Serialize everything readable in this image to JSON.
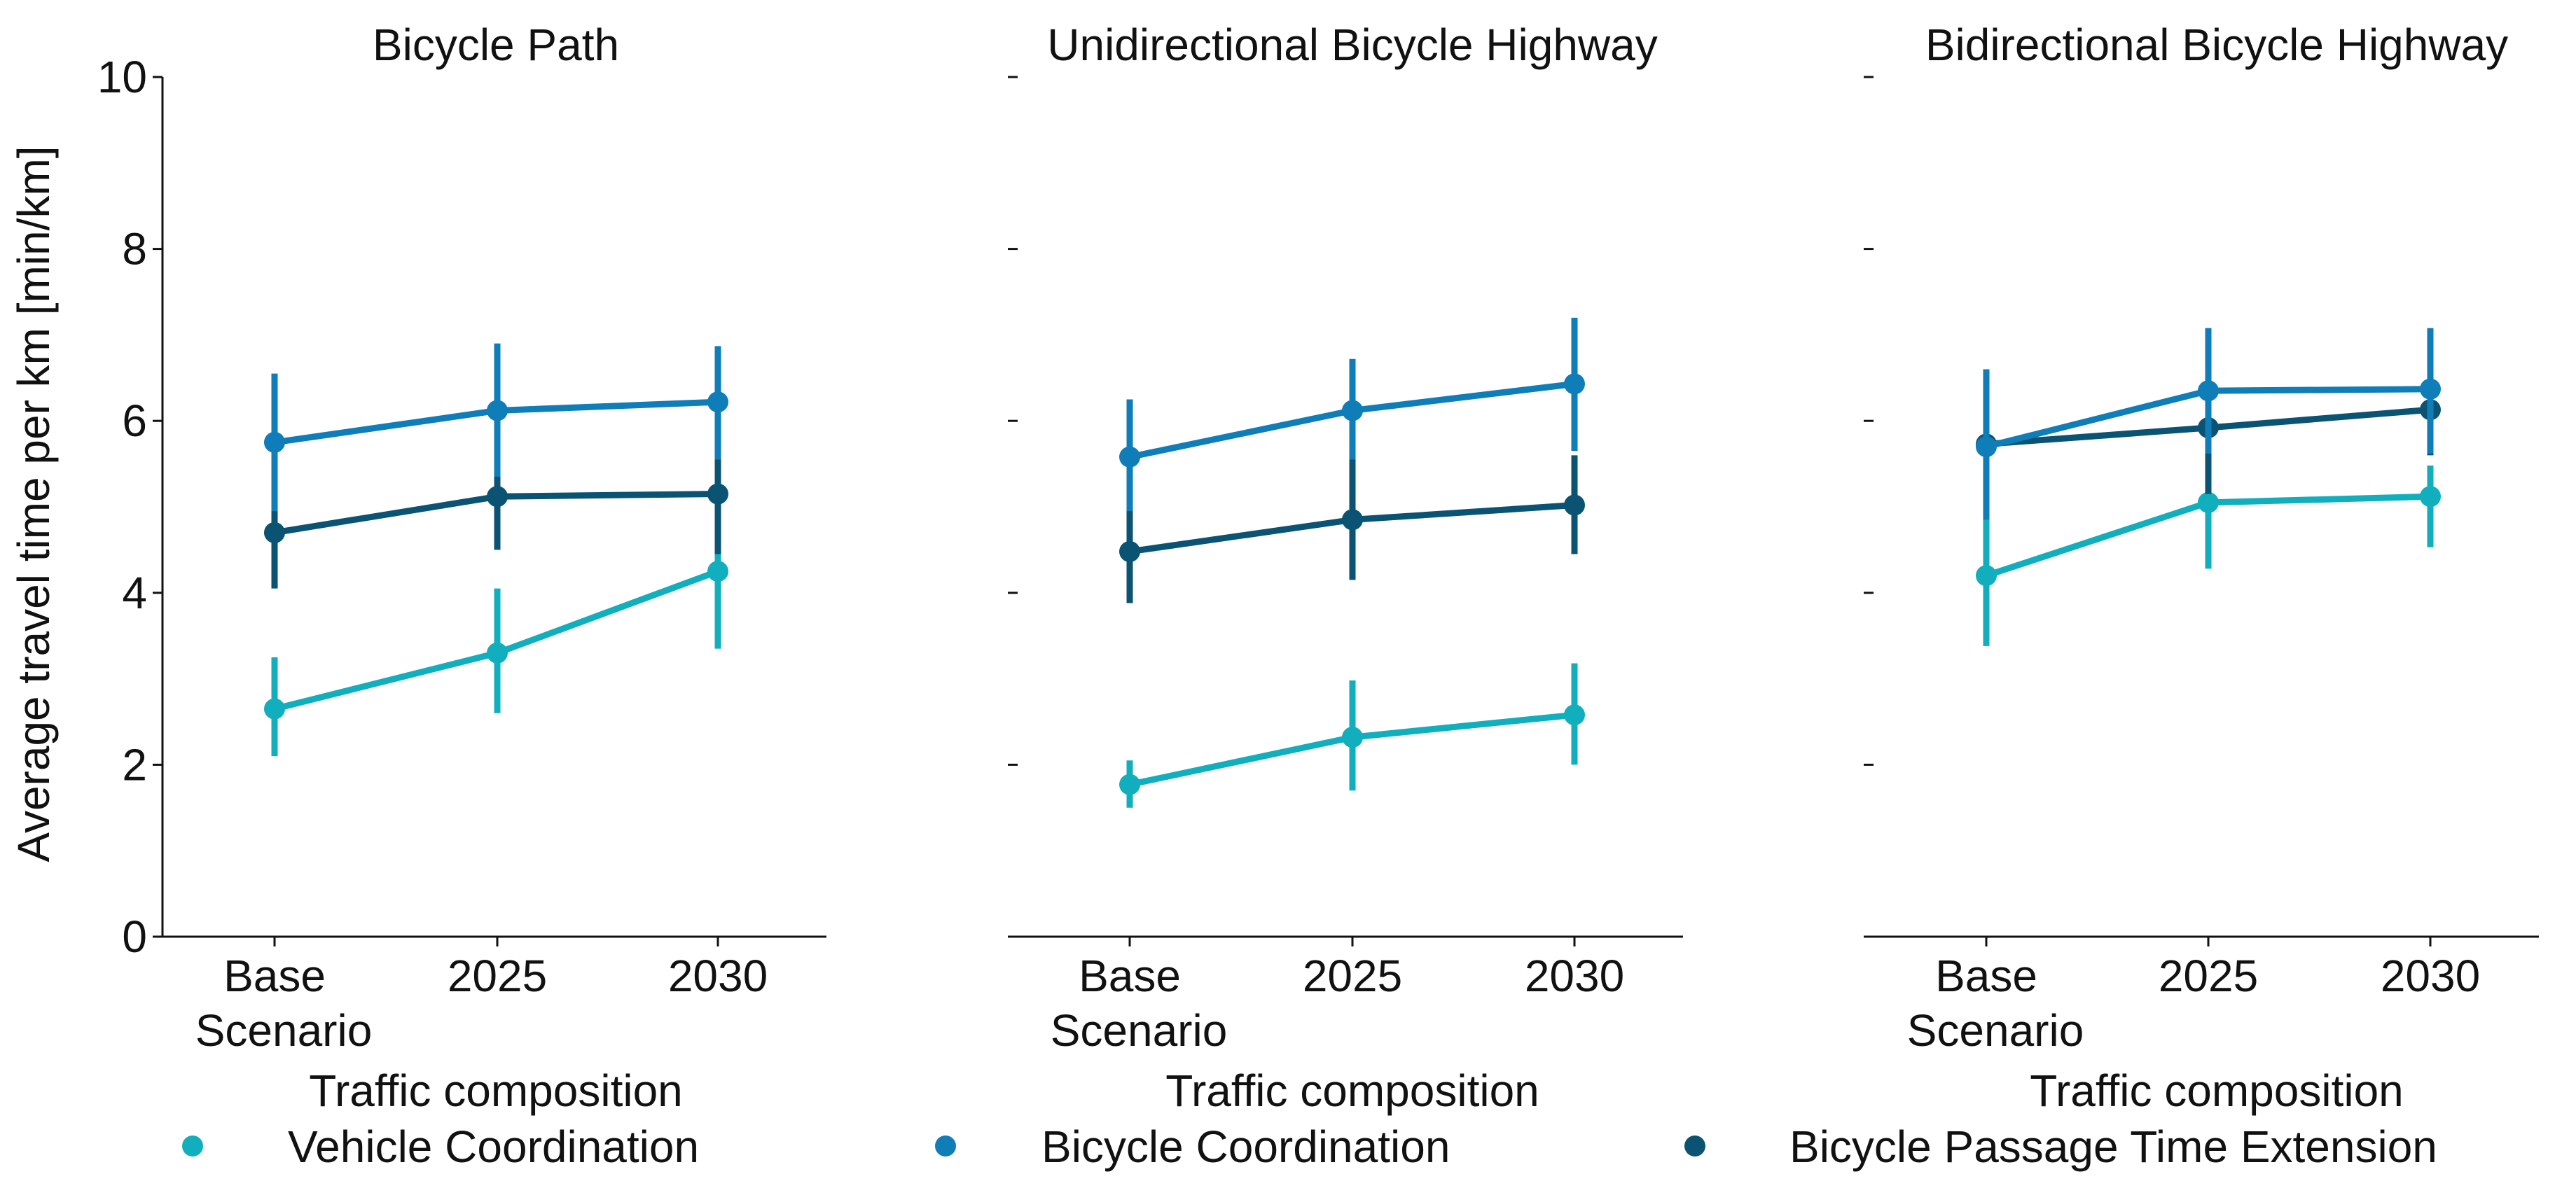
{
  "chart_data": {
    "type": "line",
    "ylabel": "Average travel time per km [min/km]",
    "ylim": [
      0,
      10
    ],
    "yticks": [
      0,
      2,
      4,
      6,
      8,
      10
    ],
    "xlabel": "Traffic composition",
    "categories": [
      {
        "line1": "Base",
        "line2": "Scenario"
      },
      {
        "line1": "2025",
        "line2": ""
      },
      {
        "line1": "2030",
        "line2": ""
      }
    ],
    "series_styles": [
      {
        "name": "Vehicle Coordination",
        "color": "#11afbd"
      },
      {
        "name": "Bicycle Coordination",
        "color": "#0e7db8"
      },
      {
        "name": "Bicycle Passage Time Extension",
        "color": "#0b5373"
      }
    ],
    "panels": [
      {
        "title": "Bicycle Path",
        "series": [
          {
            "name": "Vehicle Coordination",
            "values": [
              2.65,
              3.3,
              4.25
            ],
            "ci_low": [
              2.1,
              2.6,
              3.35
            ],
            "ci_high": [
              3.25,
              4.05,
              4.9
            ]
          },
          {
            "name": "Bicycle Coordination",
            "values": [
              5.75,
              6.12,
              6.22
            ],
            "ci_low": [
              4.95,
              5.35,
              5.55
            ],
            "ci_high": [
              6.55,
              6.9,
              6.87
            ]
          },
          {
            "name": "Bicycle Passage Time Extension",
            "values": [
              4.7,
              5.12,
              5.15
            ],
            "ci_low": [
              4.05,
              4.5,
              4.45
            ],
            "ci_high": [
              5.35,
              5.75,
              5.8
            ]
          }
        ]
      },
      {
        "title": "Unidirectional Bicycle Highway",
        "series": [
          {
            "name": "Vehicle Coordination",
            "values": [
              1.77,
              2.32,
              2.58
            ],
            "ci_low": [
              1.5,
              1.7,
              2.0
            ],
            "ci_high": [
              2.05,
              2.98,
              3.18
            ]
          },
          {
            "name": "Bicycle Coordination",
            "values": [
              5.58,
              6.12,
              6.43
            ],
            "ci_low": [
              4.95,
              5.55,
              5.65
            ],
            "ci_high": [
              6.25,
              6.72,
              7.2
            ]
          },
          {
            "name": "Bicycle Passage Time Extension",
            "values": [
              4.48,
              4.85,
              5.02
            ],
            "ci_low": [
              3.88,
              4.15,
              4.45
            ],
            "ci_high": [
              5.15,
              5.55,
              5.6
            ]
          }
        ]
      },
      {
        "title": "Bidirectional Bicycle Highway",
        "series": [
          {
            "name": "Vehicle Coordination",
            "values": [
              4.2,
              5.05,
              5.12
            ],
            "ci_low": [
              3.38,
              4.28,
              4.53
            ],
            "ci_high": [
              4.85,
              5.45,
              5.48
            ]
          },
          {
            "name": "Bicycle Coordination",
            "values": [
              5.7,
              6.35,
              6.37
            ],
            "ci_low": [
              4.85,
              5.62,
              5.62
            ],
            "ci_high": [
              6.6,
              7.08,
              7.08
            ]
          },
          {
            "name": "Bicycle Passage Time Extension",
            "values": [
              5.73,
              5.92,
              6.13
            ],
            "ci_low": [
              4.85,
              5.15,
              5.6
            ],
            "ci_high": [
              6.6,
              6.65,
              6.7
            ]
          }
        ]
      }
    ],
    "legend": [
      "Vehicle Coordination",
      "Bicycle Coordination",
      "Bicycle Passage Time Extension"
    ]
  }
}
